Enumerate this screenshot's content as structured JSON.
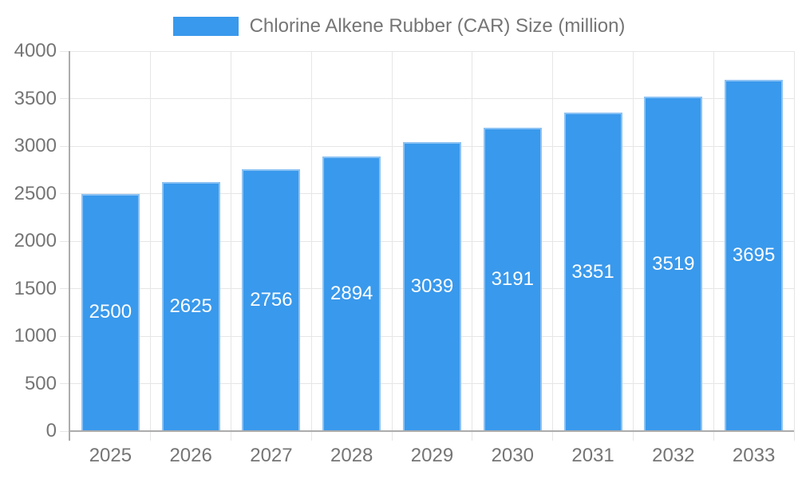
{
  "chart_data": {
    "type": "bar",
    "title": "Chlorine Alkene Rubber (CAR) Size (million)",
    "legend": {
      "label": "Chlorine Alkene Rubber (CAR) Size (million)",
      "position": "top"
    },
    "categories": [
      "2025",
      "2026",
      "2027",
      "2028",
      "2029",
      "2030",
      "2031",
      "2032",
      "2033"
    ],
    "values": [
      2500,
      2625,
      2756,
      2894,
      3039,
      3191,
      3351,
      3519,
      3695
    ],
    "bar_value_labels": [
      "2500",
      "2625",
      "2756",
      "2894",
      "3039",
      "3191",
      "3351",
      "3519",
      "3695"
    ],
    "xlabel": "",
    "ylabel": "",
    "ylim": [
      0,
      4000
    ],
    "ytick_step": 500,
    "yticks": [
      0,
      500,
      1000,
      1500,
      2000,
      2500,
      3000,
      3500,
      4000
    ],
    "grid": true,
    "colors": {
      "bar_fill": "#3999EC",
      "bar_border": "#8CC2F4",
      "grid": "#E6E6E6",
      "axis": "#ACACAC",
      "text": "#757575",
      "value_label": "#FFFFFF"
    }
  }
}
